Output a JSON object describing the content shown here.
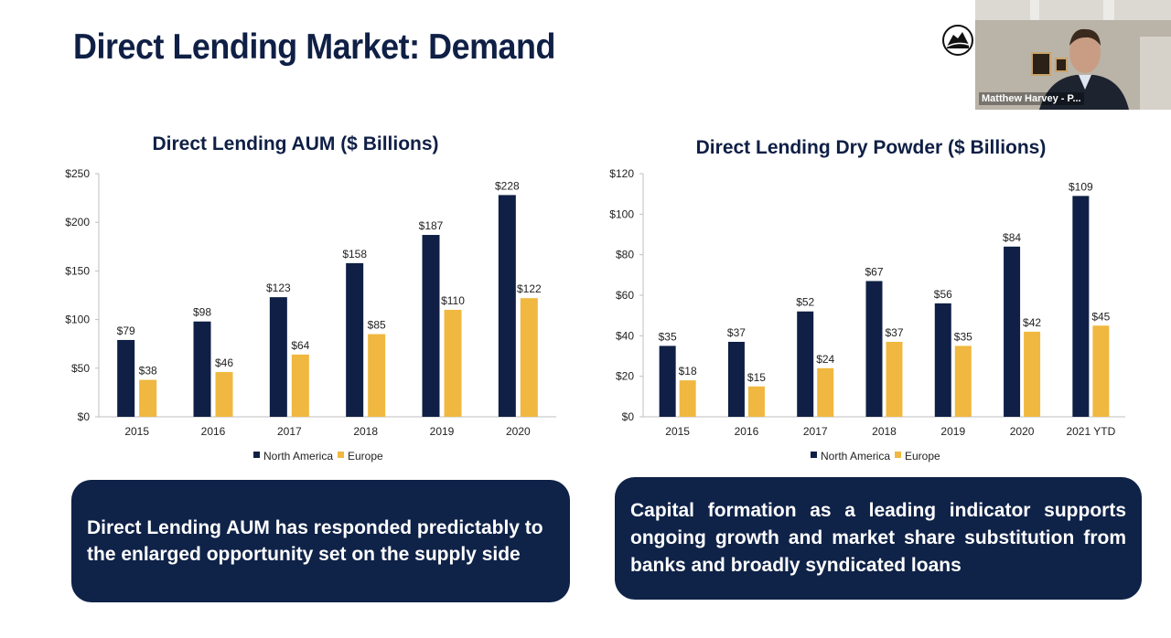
{
  "slide": {
    "title": "Direct Lending Market: Demand"
  },
  "colors": {
    "navy": "#0f1f45",
    "north_america": "#0f1f45",
    "europe": "#f0b840",
    "box": "#0f2248",
    "grid_axis": "#bfbfbf"
  },
  "chart_data": [
    {
      "type": "bar",
      "title": "Direct Lending AUM ($ Billions)",
      "categories": [
        "2015",
        "2016",
        "2017",
        "2018",
        "2019",
        "2020"
      ],
      "series": [
        {
          "name": "North America",
          "values": [
            79,
            98,
            123,
            158,
            187,
            228
          ],
          "labels": [
            "$79",
            "$98",
            "$123",
            "$158",
            "$187",
            "$228"
          ]
        },
        {
          "name": "Europe",
          "values": [
            38,
            46,
            64,
            85,
            110,
            122
          ],
          "labels": [
            "$38",
            "$46",
            "$64",
            "$85",
            "$110",
            "$122"
          ]
        }
      ],
      "ylim": [
        0,
        250
      ],
      "yticks": [
        0,
        50,
        100,
        150,
        200,
        250
      ],
      "ytick_labels": [
        "$0",
        "$50",
        "$100",
        "$150",
        "$200",
        "$250"
      ],
      "legend": "bottom-center",
      "grid": false
    },
    {
      "type": "bar",
      "title": "Direct Lending Dry Powder ($ Billions)",
      "categories": [
        "2015",
        "2016",
        "2017",
        "2018",
        "2019",
        "2020",
        "2021 YTD"
      ],
      "series": [
        {
          "name": "North America",
          "values": [
            35,
            37,
            52,
            67,
            56,
            84,
            109
          ],
          "labels": [
            "$35",
            "$37",
            "$52",
            "$67",
            "$56",
            "$84",
            "$109"
          ]
        },
        {
          "name": "Europe",
          "values": [
            18,
            15,
            24,
            37,
            35,
            42,
            45
          ],
          "labels": [
            "$18",
            "$15",
            "$24",
            "$37",
            "$35",
            "$42",
            "$45"
          ]
        }
      ],
      "ylim": [
        0,
        120
      ],
      "yticks": [
        0,
        20,
        40,
        60,
        80,
        100,
        120
      ],
      "ytick_labels": [
        "$0",
        "$20",
        "$40",
        "$60",
        "$80",
        "$100",
        "$120"
      ],
      "legend": "bottom-center",
      "grid": false
    }
  ],
  "callouts": {
    "aum": "Direct Lending AUM has responded predictably to the enlarged opportunity set on the supply side",
    "dry_powder": "Capital formation as a leading indicator supports ongoing growth and market share substitution from banks and broadly syndicated loans"
  },
  "webcam": {
    "participant_name": "Matthew Harvey - P..."
  }
}
